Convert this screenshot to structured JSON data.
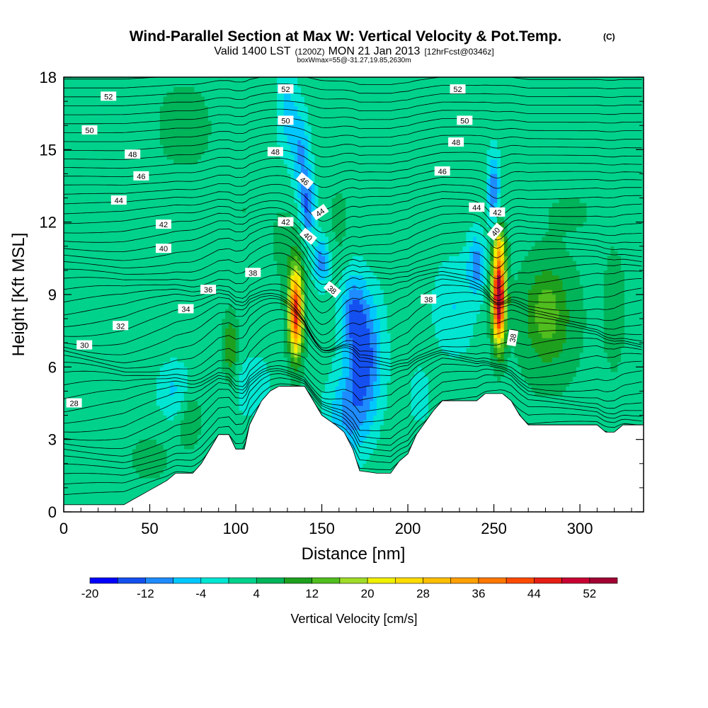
{
  "title": {
    "main": "Wind-Parallel Section at Max W: Vertical Velocity & Pot.Temp.",
    "copyright": "(C)",
    "valid_prefix": "Valid 1400 LST",
    "valid_utc": "(1200Z)",
    "valid_date": "MON 21 Jan 2013",
    "forecast": "[12hrFcst@0346z]",
    "box_info": "boxWmax=55@-31.27,19.85,2630m"
  },
  "chart_data": {
    "type": "heatmap",
    "xlabel": "Distance [nm]",
    "ylabel": "Height [Kft MSL]",
    "xlim": [
      0,
      337
    ],
    "ylim": [
      0,
      18
    ],
    "x_ticks": [
      0,
      50,
      100,
      150,
      200,
      250,
      300
    ],
    "y_ticks": [
      0,
      3,
      6,
      9,
      12,
      15,
      18
    ],
    "colorbar": {
      "label": "Vertical Velocity [cm/s]",
      "tick_labels": [
        "-20",
        "-12",
        "-4",
        "4",
        "12",
        "20",
        "28",
        "36",
        "44",
        "52"
      ],
      "bins": [
        -20,
        -16,
        -12,
        -8,
        -4,
        0,
        4,
        8,
        12,
        16,
        20,
        24,
        28,
        32,
        36,
        40,
        44,
        48,
        52,
        56
      ],
      "colors": [
        "#0000ff",
        "#1450f0",
        "#1e8cff",
        "#00c8ff",
        "#00e6d2",
        "#00d28c",
        "#00b45a",
        "#1ea01e",
        "#50be1e",
        "#a0dc28",
        "#f0f000",
        "#ffdc00",
        "#ffbe00",
        "#ffa000",
        "#ff7800",
        "#ff4b00",
        "#e61e14",
        "#c80032",
        "#a00032"
      ]
    },
    "background_velocity": 2,
    "terrain": [
      [
        0,
        0.3
      ],
      [
        20,
        0.3
      ],
      [
        35,
        0.3
      ],
      [
        40,
        0.5
      ],
      [
        45,
        0.7
      ],
      [
        50,
        0.9
      ],
      [
        55,
        1.1
      ],
      [
        60,
        1.3
      ],
      [
        65,
        1.6
      ],
      [
        75,
        1.6
      ],
      [
        80,
        2.0
      ],
      [
        85,
        2.6
      ],
      [
        90,
        3.2
      ],
      [
        96,
        3.2
      ],
      [
        100,
        2.6
      ],
      [
        105,
        2.6
      ],
      [
        108,
        3.6
      ],
      [
        115,
        4.6
      ],
      [
        120,
        5.0
      ],
      [
        125,
        5.2
      ],
      [
        140,
        5.2
      ],
      [
        145,
        4.6
      ],
      [
        150,
        4.0
      ],
      [
        158,
        3.6
      ],
      [
        163,
        3.3
      ],
      [
        168,
        2.6
      ],
      [
        172,
        1.7
      ],
      [
        182,
        1.6
      ],
      [
        190,
        1.6
      ],
      [
        195,
        2.1
      ],
      [
        200,
        2.4
      ],
      [
        205,
        3.2
      ],
      [
        215,
        4.2
      ],
      [
        220,
        4.6
      ],
      [
        240,
        4.6
      ],
      [
        245,
        4.9
      ],
      [
        255,
        4.9
      ],
      [
        260,
        4.6
      ],
      [
        265,
        4.0
      ],
      [
        270,
        3.6
      ],
      [
        310,
        3.6
      ],
      [
        315,
        3.3
      ],
      [
        320,
        3.3
      ],
      [
        325,
        3.6
      ],
      [
        337,
        3.6
      ]
    ],
    "velocity_features": [
      {
        "x": 135,
        "y": 8.3,
        "sx": 4.5,
        "sy": 1.9,
        "w": 30
      },
      {
        "x": 135,
        "y": 8.3,
        "sx": 2.8,
        "sy": 1.3,
        "w": 15
      },
      {
        "x": 253,
        "y": 9.0,
        "sx": 4.0,
        "sy": 2.0,
        "w": 44
      },
      {
        "x": 253,
        "y": 8.8,
        "sx": 2.2,
        "sy": 1.3,
        "w": 18
      },
      {
        "x": 253,
        "y": 11.2,
        "sx": 3.0,
        "sy": 0.7,
        "w": 12
      },
      {
        "x": 282,
        "y": 8.0,
        "sx": 18,
        "sy": 2.8,
        "w": 8
      },
      {
        "x": 280,
        "y": 8.3,
        "sx": 9,
        "sy": 1.4,
        "w": 5
      },
      {
        "x": 320,
        "y": 8.4,
        "sx": 6,
        "sy": 2.4,
        "w": 6
      },
      {
        "x": 97,
        "y": 6.8,
        "sx": 4,
        "sy": 1.4,
        "w": 10
      },
      {
        "x": 73,
        "y": 4.0,
        "sx": 7,
        "sy": 1.3,
        "w": 6
      },
      {
        "x": 50,
        "y": 2.2,
        "sx": 12,
        "sy": 1.0,
        "w": 4
      },
      {
        "x": 130,
        "y": 11.0,
        "sx": 10,
        "sy": 2.2,
        "w": 3
      },
      {
        "x": 105,
        "y": 12.5,
        "sx": 16,
        "sy": 2.5,
        "w": 2
      },
      {
        "x": 160,
        "y": 12.0,
        "sx": 8,
        "sy": 2.0,
        "w": 3
      },
      {
        "x": 175,
        "y": 6.5,
        "sx": 10,
        "sy": 2.5,
        "w": -16
      },
      {
        "x": 168,
        "y": 8.4,
        "sx": 7,
        "sy": 1.6,
        "w": -10
      },
      {
        "x": 165,
        "y": 4.0,
        "sx": 12,
        "sy": 1.8,
        "w": -10
      },
      {
        "x": 150,
        "y": 10.4,
        "sx": 5,
        "sy": 1.0,
        "w": -12
      },
      {
        "x": 142,
        "y": 12.6,
        "sx": 4,
        "sy": 1.4,
        "w": -14
      },
      {
        "x": 138,
        "y": 14.8,
        "sx": 5,
        "sy": 2.0,
        "w": -10
      },
      {
        "x": 130,
        "y": 16.5,
        "sx": 6,
        "sy": 1.8,
        "w": -8
      },
      {
        "x": 110,
        "y": 5.2,
        "sx": 10,
        "sy": 1.2,
        "w": -6
      },
      {
        "x": 65,
        "y": 5.0,
        "sx": 10,
        "sy": 1.2,
        "w": -7
      },
      {
        "x": 250,
        "y": 13.3,
        "sx": 3.5,
        "sy": 1.5,
        "w": -14
      },
      {
        "x": 240,
        "y": 10.3,
        "sx": 5,
        "sy": 1.2,
        "w": -12
      },
      {
        "x": 227,
        "y": 8.5,
        "sx": 12,
        "sy": 2.0,
        "w": -6
      },
      {
        "x": 207,
        "y": 4.8,
        "sx": 7,
        "sy": 1.3,
        "w": -4
      },
      {
        "x": 70,
        "y": 16.0,
        "sx": 18,
        "sy": 2.0,
        "w": 4
      },
      {
        "x": 160,
        "y": 17.0,
        "sx": 25,
        "sy": 1.2,
        "w": 2
      },
      {
        "x": 295,
        "y": 12.4,
        "sx": 14,
        "sy": 0.8,
        "w": 3
      },
      {
        "x": 230,
        "y": 2.8,
        "sx": 8,
        "sy": 0.6,
        "w": -4
      }
    ],
    "isentrope_labels": [
      {
        "value": "52",
        "x": 26,
        "y": 17.2,
        "rot": 0
      },
      {
        "value": "50",
        "x": 15,
        "y": 15.8,
        "rot": 0
      },
      {
        "value": "48",
        "x": 40,
        "y": 14.8,
        "rot": 0
      },
      {
        "value": "46",
        "x": 45,
        "y": 13.9,
        "rot": 0
      },
      {
        "value": "44",
        "x": 32,
        "y": 12.9,
        "rot": 0
      },
      {
        "value": "42",
        "x": 58,
        "y": 11.9,
        "rot": 0
      },
      {
        "value": "40",
        "x": 58,
        "y": 10.9,
        "rot": 0
      },
      {
        "value": "38",
        "x": 110,
        "y": 9.9,
        "rot": 0
      },
      {
        "value": "36",
        "x": 84,
        "y": 9.2,
        "rot": 0
      },
      {
        "value": "34",
        "x": 71,
        "y": 8.4,
        "rot": 0
      },
      {
        "value": "32",
        "x": 33,
        "y": 7.7,
        "rot": 0
      },
      {
        "value": "30",
        "x": 12,
        "y": 6.9,
        "rot": 0
      },
      {
        "value": "28",
        "x": 6,
        "y": 4.5,
        "rot": 0
      },
      {
        "value": "52",
        "x": 129,
        "y": 17.5,
        "rot": 0
      },
      {
        "value": "50",
        "x": 129,
        "y": 16.2,
        "rot": 0
      },
      {
        "value": "48",
        "x": 123,
        "y": 14.9,
        "rot": 0
      },
      {
        "value": "46",
        "x": 140,
        "y": 13.7,
        "rot": 40
      },
      {
        "value": "44",
        "x": 149,
        "y": 12.4,
        "rot": -35
      },
      {
        "value": "42",
        "x": 129,
        "y": 12.0,
        "rot": 0
      },
      {
        "value": "40",
        "x": 142,
        "y": 11.4,
        "rot": 40
      },
      {
        "value": "38",
        "x": 156,
        "y": 9.2,
        "rot": 40
      },
      {
        "value": "52",
        "x": 229,
        "y": 17.5,
        "rot": 0
      },
      {
        "value": "50",
        "x": 233,
        "y": 16.2,
        "rot": 0
      },
      {
        "value": "48",
        "x": 228,
        "y": 15.3,
        "rot": 0
      },
      {
        "value": "46",
        "x": 220,
        "y": 14.1,
        "rot": 0
      },
      {
        "value": "44",
        "x": 240,
        "y": 12.6,
        "rot": 0
      },
      {
        "value": "42",
        "x": 252,
        "y": 12.4,
        "rot": 0
      },
      {
        "value": "40",
        "x": 251,
        "y": 11.6,
        "rot": -50
      },
      {
        "value": "38",
        "x": 212,
        "y": 8.8,
        "rot": 0
      },
      {
        "value": "38",
        "x": 261,
        "y": 7.2,
        "rot": -80
      }
    ]
  }
}
